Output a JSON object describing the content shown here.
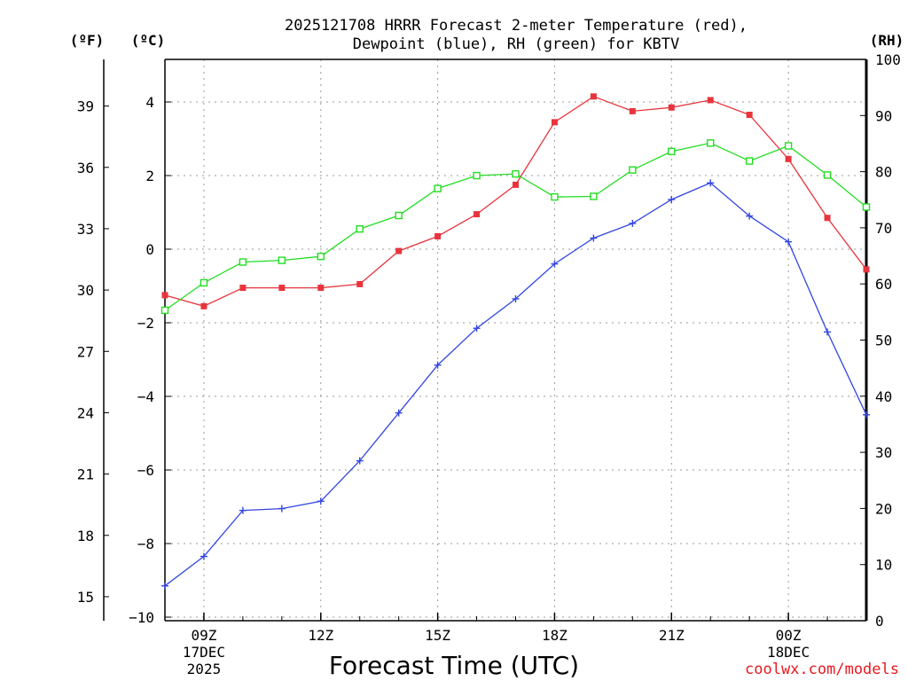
{
  "chart_data": {
    "type": "line",
    "title_line1": "2025121708 HRRR Forecast 2-meter Temperature (red),",
    "title_line2": "Dewpoint (blue), RH (green) for KBTV",
    "xlabel": "Forecast Time (UTC)",
    "credit": "coolwx.com/models",
    "credit_color": "#e8191f",
    "units": {
      "fahrenheit": "(ºF)",
      "celsius": "(ºC)",
      "rh": "(RH)"
    },
    "x_hours": [
      8,
      9,
      10,
      11,
      12,
      13,
      14,
      15,
      16,
      17,
      18,
      19,
      20,
      21,
      22,
      23,
      24,
      25,
      26
    ],
    "xlim": [
      8,
      26
    ],
    "x_ticks": [
      {
        "hour": 9,
        "lines": [
          "09Z",
          "17DEC",
          "2025"
        ]
      },
      {
        "hour": 12,
        "lines": [
          "12Z"
        ]
      },
      {
        "hour": 15,
        "lines": [
          "15Z"
        ]
      },
      {
        "hour": 18,
        "lines": [
          "18Z"
        ]
      },
      {
        "hour": 21,
        "lines": [
          "21Z"
        ]
      },
      {
        "hour": 24,
        "lines": [
          "00Z",
          "18DEC"
        ]
      }
    ],
    "ylim_celsius": [
      -10,
      5.3
    ],
    "celsius_ticks": [
      "4",
      "2",
      "0",
      "−2",
      "−4",
      "−6",
      "−8",
      "−10"
    ],
    "celsius_tick_values": [
      4,
      2,
      0,
      -2,
      -4,
      -6,
      -8,
      -10
    ],
    "fahrenheit_ticks": [
      "39",
      "36",
      "33",
      "30",
      "27",
      "24",
      "21",
      "18",
      "15"
    ],
    "fahrenheit_tick_values": [
      39,
      36,
      33,
      30,
      27,
      24,
      21,
      18,
      15
    ],
    "ylim_rh": [
      0,
      100
    ],
    "rh_ticks": [
      "100",
      "90",
      "80",
      "70",
      "60",
      "50",
      "40",
      "30",
      "20",
      "10",
      "0"
    ],
    "rh_tick_values": [
      100,
      90,
      80,
      70,
      60,
      50,
      40,
      30,
      20,
      10,
      0
    ],
    "series": [
      {
        "name": "Temperature",
        "units": "C",
        "color": "#e8343c",
        "marker": "filled-square",
        "values": [
          -1.25,
          -1.55,
          -1.05,
          -1.05,
          -1.05,
          -0.95,
          -0.05,
          0.35,
          0.95,
          1.75,
          3.45,
          4.15,
          3.75,
          3.85,
          4.05,
          3.65,
          2.45,
          0.85,
          -0.55
        ]
      },
      {
        "name": "Dewpoint",
        "units": "C",
        "color": "#3346e0",
        "marker": "plus",
        "values": [
          -9.15,
          -8.35,
          -7.1,
          -7.05,
          -6.85,
          -5.75,
          -4.45,
          -3.15,
          -2.15,
          -1.35,
          -0.4,
          0.3,
          0.7,
          1.35,
          1.8,
          0.9,
          0.2,
          -2.25,
          -4.5
        ]
      },
      {
        "name": "RH",
        "units": "%",
        "color": "#22dd22",
        "marker": "open-square",
        "values": [
          55.3,
          60.2,
          63.9,
          64.2,
          64.9,
          69.8,
          72.2,
          77.0,
          79.3,
          79.6,
          75.5,
          75.6,
          80.3,
          83.6,
          85.1,
          81.9,
          84.6,
          79.4,
          73.7
        ]
      }
    ]
  }
}
